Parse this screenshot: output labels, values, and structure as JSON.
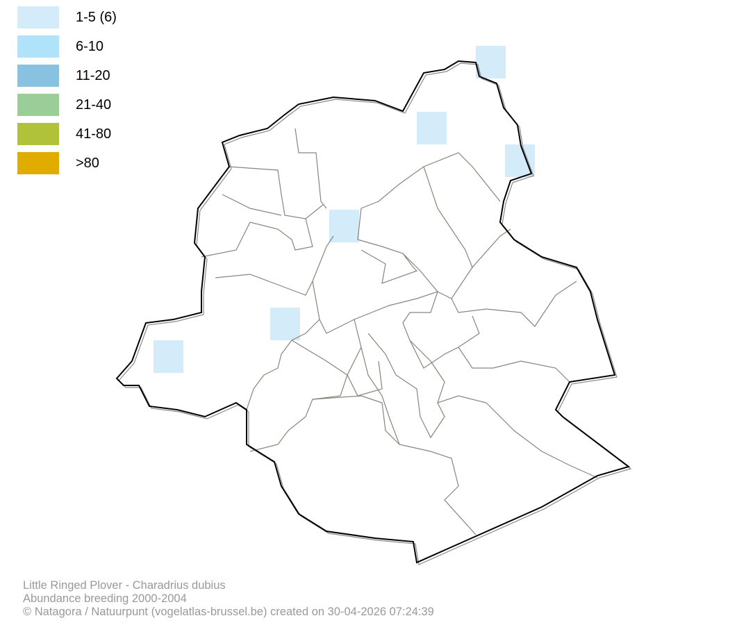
{
  "legend": {
    "items": [
      {
        "label": "1-5 (6)",
        "color": "#d4ebfa"
      },
      {
        "label": "6-10",
        "color": "#b0e2fa"
      },
      {
        "label": "11-20",
        "color": "#89c2e0"
      },
      {
        "label": "21-40",
        "color": "#9acd98"
      },
      {
        "label": "41-80",
        "color": "#b0c23a"
      },
      {
        "label": ">80",
        "color": "#e0ac00"
      }
    ]
  },
  "map": {
    "cells_class": "1-5 (6)",
    "cell_count": 6
  },
  "footer": {
    "line1": "Little Ringed Plover - Charadrius dubius",
    "line2": "Abundance breeding 2000-2004",
    "line3": "© Natagora / Natuurpunt (vogelatlas-brussel.be) created on 30-04-2026 07:24:39"
  }
}
